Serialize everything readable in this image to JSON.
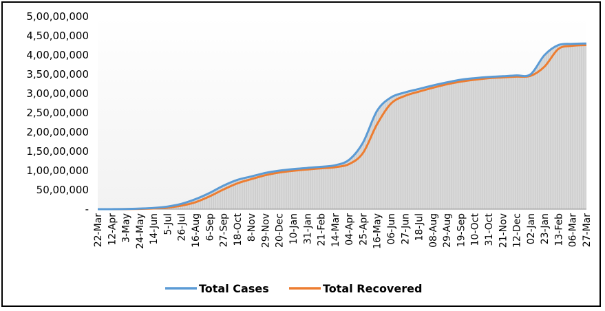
{
  "chart_data": {
    "type": "line",
    "title": "",
    "xlabel": "",
    "ylabel": "",
    "ylim": [
      0,
      50000000
    ],
    "y_ticks": [
      {
        "value": 0,
        "label": "-"
      },
      {
        "value": 5000000,
        "label": "50,00,000"
      },
      {
        "value": 10000000,
        "label": "1,00,00,000"
      },
      {
        "value": 15000000,
        "label": "1,50,00,000"
      },
      {
        "value": 20000000,
        "label": "2,00,00,000"
      },
      {
        "value": 25000000,
        "label": "2,50,00,000"
      },
      {
        "value": 30000000,
        "label": "3,00,00,000"
      },
      {
        "value": 35000000,
        "label": "3,50,00,000"
      },
      {
        "value": 40000000,
        "label": "4,00,00,000"
      },
      {
        "value": 45000000,
        "label": "4,50,00,000"
      },
      {
        "value": 50000000,
        "label": "5,00,00,000"
      }
    ],
    "categories": [
      "22-Mar",
      "12-Apr",
      "3-May",
      "24-May",
      "14-Jun",
      "5-Jul",
      "26-Jul",
      "16-Aug",
      "6-Sep",
      "27-Sep",
      "18-Oct",
      "8-Nov",
      "29-Nov",
      "20-Dec",
      "10-Jan",
      "31-Jan",
      "21-Feb",
      "14-Mar",
      "04-Apr",
      "25-Apr",
      "16-May",
      "06-Jun",
      "27-Jun",
      "18-Jul",
      "08-Aug",
      "29-Aug",
      "19-Sep",
      "10-Oct",
      "31-Oct",
      "21-Nov",
      "12-Dec",
      "02-Jan",
      "23-Jan",
      "13-Feb",
      "06-Mar",
      "27-Mar"
    ],
    "series": [
      {
        "name": "Total Cases",
        "color": "#5B9BD5",
        "values": [
          0,
          10000,
          40000,
          150000,
          320000,
          680000,
          1400000,
          2600000,
          4200000,
          6100000,
          7600000,
          8500000,
          9400000,
          10000000,
          10400000,
          10700000,
          11000000,
          11400000,
          12800000,
          17300000,
          25500000,
          29000000,
          30300000,
          31200000,
          32100000,
          32900000,
          33600000,
          34000000,
          34300000,
          34500000,
          34700000,
          35000000,
          40000000,
          42600000,
          42900000,
          43000000
        ]
      },
      {
        "name": "Total Recovered",
        "color": "#ED7D31",
        "values": [
          0,
          2000,
          15000,
          70000,
          180000,
          420000,
          920000,
          1800000,
          3300000,
          5100000,
          6700000,
          7800000,
          8800000,
          9500000,
          9950000,
          10300000,
          10600000,
          10900000,
          11700000,
          14600000,
          22000000,
          27400000,
          29400000,
          30500000,
          31500000,
          32400000,
          33100000,
          33600000,
          34000000,
          34200000,
          34400000,
          34600000,
          37000000,
          41600000,
          42400000,
          42600000
        ]
      }
    ],
    "grid": false,
    "legend_position": "bottom"
  }
}
